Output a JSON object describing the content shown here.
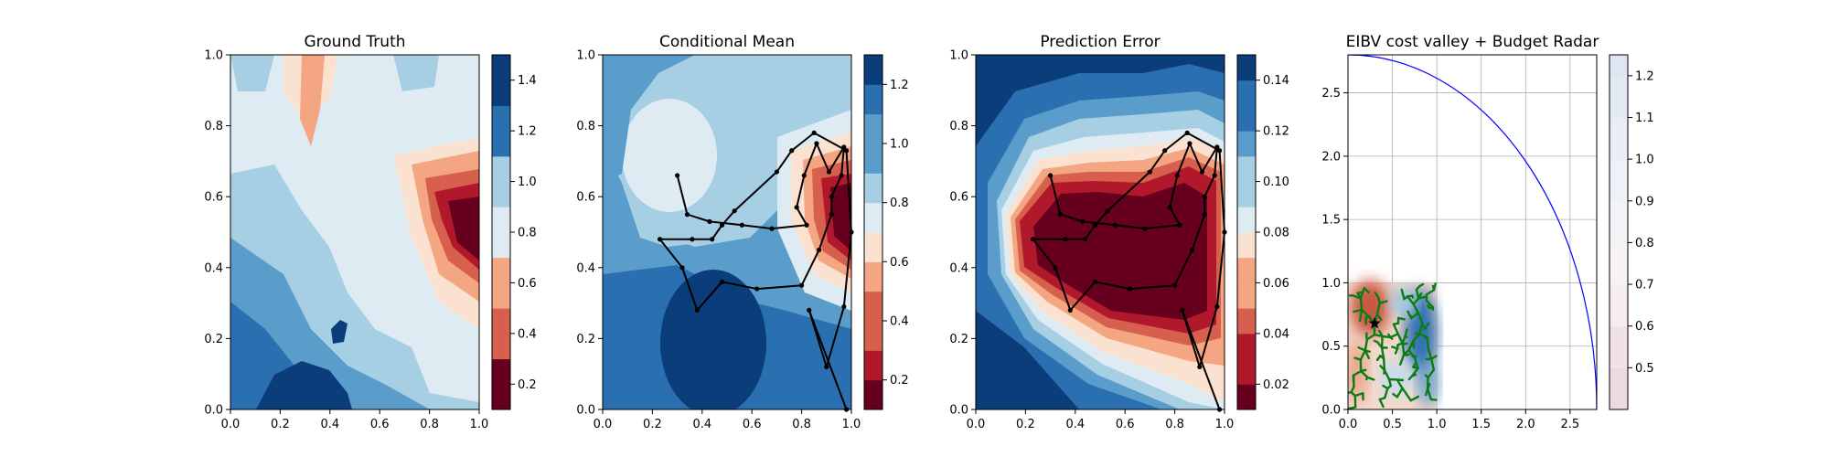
{
  "panels": [
    {
      "title": "Ground Truth",
      "xlim": [
        0,
        1
      ],
      "ylim": [
        0,
        1
      ],
      "xticks": [
        "0.0",
        "0.2",
        "0.4",
        "0.6",
        "0.8",
        "1.0"
      ],
      "yticks": [
        "0.0",
        "0.2",
        "0.4",
        "0.6",
        "0.8",
        "1.0"
      ],
      "colorbar": {
        "ticks": [
          "0.2",
          "0.4",
          "0.6",
          "0.8",
          "1.0",
          "1.2",
          "1.4"
        ],
        "levels": [
          0.1,
          0.3,
          0.5,
          0.7,
          0.9,
          1.1,
          1.3,
          1.5
        ],
        "tick_values": [
          0.2,
          0.4,
          0.6,
          0.8,
          1.0,
          1.2,
          1.4
        ]
      }
    },
    {
      "title": "Conditional Mean",
      "xlim": [
        0,
        1
      ],
      "ylim": [
        0,
        1
      ],
      "xticks": [
        "0.0",
        "0.2",
        "0.4",
        "0.6",
        "0.8",
        "1.0"
      ],
      "yticks": [
        "0.0",
        "0.2",
        "0.4",
        "0.6",
        "0.8",
        "1.0"
      ],
      "colorbar": {
        "ticks": [
          "0.2",
          "0.4",
          "0.6",
          "0.8",
          "1.0",
          "1.2"
        ],
        "levels": [
          0.1,
          0.2,
          0.3,
          0.4,
          0.5,
          0.6,
          0.7,
          0.8,
          0.9,
          1.0,
          1.1,
          1.2,
          1.3
        ],
        "tick_values": [
          0.2,
          0.4,
          0.6,
          0.8,
          1.0,
          1.2
        ]
      }
    },
    {
      "title": "Prediction Error",
      "xlim": [
        0,
        1
      ],
      "ylim": [
        0,
        1
      ],
      "xticks": [
        "0.0",
        "0.2",
        "0.4",
        "0.6",
        "0.8",
        "1.0"
      ],
      "yticks": [
        "0.0",
        "0.2",
        "0.4",
        "0.6",
        "0.8",
        "1.0"
      ],
      "colorbar": {
        "ticks": [
          "0.02",
          "0.04",
          "0.06",
          "0.08",
          "0.10",
          "0.12",
          "0.14"
        ],
        "levels": [
          0.01,
          0.02,
          0.03,
          0.04,
          0.05,
          0.06,
          0.07,
          0.08,
          0.09,
          0.1,
          0.11,
          0.12,
          0.13,
          0.14,
          0.15
        ],
        "tick_values": [
          0.02,
          0.04,
          0.06,
          0.08,
          0.1,
          0.12,
          0.14
        ]
      }
    },
    {
      "title": "EIBV cost valley + Budget Radar",
      "xlim": [
        0,
        2.8
      ],
      "ylim": [
        0,
        2.8
      ],
      "xticks": [
        "0.0",
        "0.5",
        "1.0",
        "1.5",
        "2.0",
        "2.5"
      ],
      "yticks": [
        "0.0",
        "0.5",
        "1.0",
        "1.5",
        "2.0",
        "2.5"
      ],
      "colorbar": {
        "ticks": [
          "0.5",
          "0.6",
          "0.7",
          "0.8",
          "0.9",
          "1.0",
          "1.1",
          "1.2"
        ],
        "levels": [
          0.4,
          0.5,
          0.6,
          0.7,
          0.8,
          0.9,
          1.0,
          1.1,
          1.2,
          1.25
        ],
        "tick_values": [
          0.5,
          0.6,
          0.7,
          0.8,
          0.9,
          1.0,
          1.1,
          1.2
        ]
      }
    }
  ],
  "chart_data": [
    {
      "type": "heatmap",
      "title": "Ground Truth",
      "xlim": [
        0,
        1
      ],
      "ylim": [
        0,
        1
      ],
      "colormap": "RdBu",
      "features": [
        {
          "x": 0.95,
          "y": 0.52,
          "value": 0.15,
          "note": "low (dark red) region"
        },
        {
          "x": 0.38,
          "y": 0.9,
          "value": 0.65,
          "note": "salmon streak"
        },
        {
          "x": 0.25,
          "y": 0.05,
          "value": 1.4,
          "note": "high (dark blue) region"
        }
      ]
    },
    {
      "type": "line",
      "title": "Conditional Mean",
      "xlim": [
        0,
        1
      ],
      "ylim": [
        0,
        1
      ],
      "colormap": "RdBu",
      "path_x": [
        0.3,
        0.34,
        0.43,
        0.56,
        0.68,
        0.82,
        0.78,
        0.81,
        0.86,
        0.91,
        0.97,
        0.96,
        0.92,
        0.92,
        0.87,
        0.8,
        0.62,
        0.48,
        0.38,
        0.32,
        0.23,
        0.36,
        0.44,
        0.48,
        0.53,
        0.7,
        0.76,
        0.85,
        0.98,
        1.0,
        0.97,
        0.9,
        0.83,
        0.98
      ],
      "path_y": [
        0.66,
        0.55,
        0.53,
        0.52,
        0.51,
        0.52,
        0.57,
        0.66,
        0.75,
        0.67,
        0.74,
        0.66,
        0.6,
        0.55,
        0.45,
        0.35,
        0.34,
        0.36,
        0.28,
        0.4,
        0.48,
        0.48,
        0.48,
        0.52,
        0.56,
        0.67,
        0.73,
        0.78,
        0.73,
        0.5,
        0.29,
        0.12,
        0.28,
        0.0
      ],
      "features": [
        {
          "x": 0.97,
          "y": 0.55,
          "value": 0.15,
          "note": "low region"
        },
        {
          "x": 0.25,
          "y": 0.75,
          "value": 0.8,
          "note": "light blob"
        },
        {
          "x": 0.47,
          "y": 0.18,
          "value": 1.25,
          "note": "high region"
        }
      ]
    },
    {
      "type": "heatmap",
      "title": "Prediction Error",
      "xlim": [
        0,
        1
      ],
      "ylim": [
        0,
        1
      ],
      "colormap": "RdBu",
      "features": [
        {
          "x": 0.55,
          "y": 0.45,
          "value": 0.01,
          "note": "low error along sampled path"
        },
        {
          "x": 0.02,
          "y": 0.97,
          "value": 0.15,
          "note": "high error in corners"
        }
      ]
    },
    {
      "type": "line",
      "title": "EIBV cost valley + Budget Radar",
      "xlim": [
        0,
        2.8
      ],
      "ylim": [
        0,
        2.8
      ],
      "grid": true,
      "budget_radius": 2.8,
      "start_point": [
        0.3,
        0.68
      ],
      "field_extent": [
        0,
        1,
        0,
        1
      ]
    }
  ]
}
